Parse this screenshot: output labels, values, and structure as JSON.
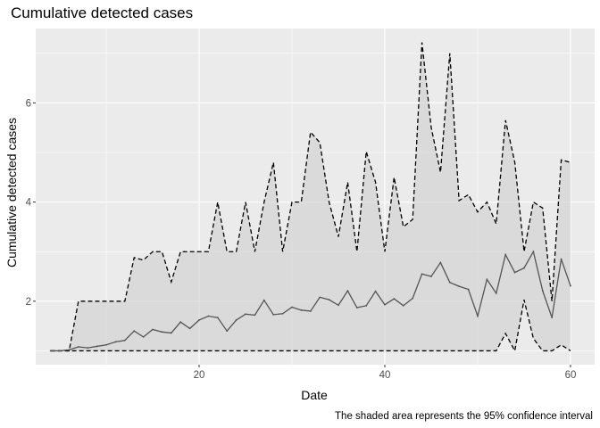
{
  "chart_data": {
    "type": "line",
    "title": "Cumulative detected cases",
    "xlabel": "Date",
    "ylabel": "Cumulative detected cases",
    "caption": "The shaded area represents the 95% confidence interval",
    "xlim": [
      2.4,
      62.6
    ],
    "ylim": [
      0.72,
      7.5
    ],
    "x_ticks": [
      20,
      40,
      60
    ],
    "y_ticks": [
      2,
      4,
      6
    ],
    "grid": true,
    "legend": "none",
    "x": [
      4,
      5,
      6,
      7,
      8,
      9,
      10,
      11,
      12,
      13,
      14,
      15,
      16,
      17,
      18,
      19,
      20,
      21,
      22,
      23,
      24,
      25,
      26,
      27,
      28,
      29,
      30,
      31,
      32,
      33,
      34,
      35,
      36,
      37,
      38,
      39,
      40,
      41,
      42,
      43,
      44,
      45,
      46,
      47,
      48,
      49,
      50,
      51,
      52,
      53,
      54,
      55,
      56,
      57,
      58,
      59,
      60
    ],
    "series": [
      {
        "role": "estimate",
        "values": [
          1.0,
          1.0,
          1.02,
          1.08,
          1.06,
          1.09,
          1.12,
          1.18,
          1.21,
          1.4,
          1.28,
          1.43,
          1.38,
          1.36,
          1.58,
          1.45,
          1.62,
          1.7,
          1.67,
          1.4,
          1.62,
          1.74,
          1.72,
          2.02,
          1.73,
          1.75,
          1.88,
          1.82,
          1.8,
          2.08,
          2.03,
          1.92,
          2.21,
          1.87,
          1.91,
          2.2,
          1.93,
          2.05,
          1.91,
          2.06,
          2.55,
          2.5,
          2.78,
          2.38,
          2.3,
          2.24,
          1.7,
          2.44,
          2.16,
          2.94,
          2.58,
          2.67,
          3.0,
          2.21,
          1.67,
          2.85,
          2.31
        ]
      },
      {
        "role": "upper_bound",
        "values": [
          1.0,
          1.0,
          1.0,
          2.0,
          2.0,
          2.0,
          2.0,
          2.0,
          2.0,
          2.88,
          2.83,
          3.0,
          3.0,
          2.39,
          3.0,
          3.0,
          3.0,
          3.0,
          4.0,
          3.0,
          3.0,
          4.0,
          3.0,
          4.0,
          4.8,
          3.0,
          4.0,
          4.0,
          5.41,
          5.2,
          4.0,
          3.3,
          4.4,
          3.0,
          5.02,
          4.4,
          3.0,
          4.5,
          3.5,
          3.65,
          7.22,
          5.5,
          4.6,
          7.0,
          4.03,
          4.15,
          3.8,
          4.0,
          3.56,
          5.65,
          4.8,
          3.0,
          4.0,
          3.88,
          2.0,
          4.85,
          4.8
        ]
      },
      {
        "role": "lower_bound",
        "values": [
          1.0,
          1.0,
          1.0,
          1.0,
          1.0,
          1.0,
          1.0,
          1.0,
          1.0,
          1.0,
          1.0,
          1.0,
          1.0,
          1.0,
          1.0,
          1.0,
          1.0,
          1.0,
          1.0,
          1.0,
          1.0,
          1.0,
          1.0,
          1.0,
          1.0,
          1.0,
          1.0,
          1.0,
          1.0,
          1.0,
          1.0,
          1.0,
          1.0,
          1.0,
          1.0,
          1.0,
          1.0,
          1.0,
          1.0,
          1.0,
          1.0,
          1.0,
          1.0,
          1.0,
          1.0,
          1.0,
          1.0,
          1.0,
          1.0,
          1.35,
          1.0,
          2.03,
          1.25,
          1.0,
          1.0,
          1.12,
          1.0
        ]
      }
    ],
    "colors": {
      "panel": "#ebebeb",
      "grid": "#ffffff",
      "ribbon": "#d3d3d3",
      "estimate_line": "#555555",
      "bound_line": "#000000"
    }
  }
}
